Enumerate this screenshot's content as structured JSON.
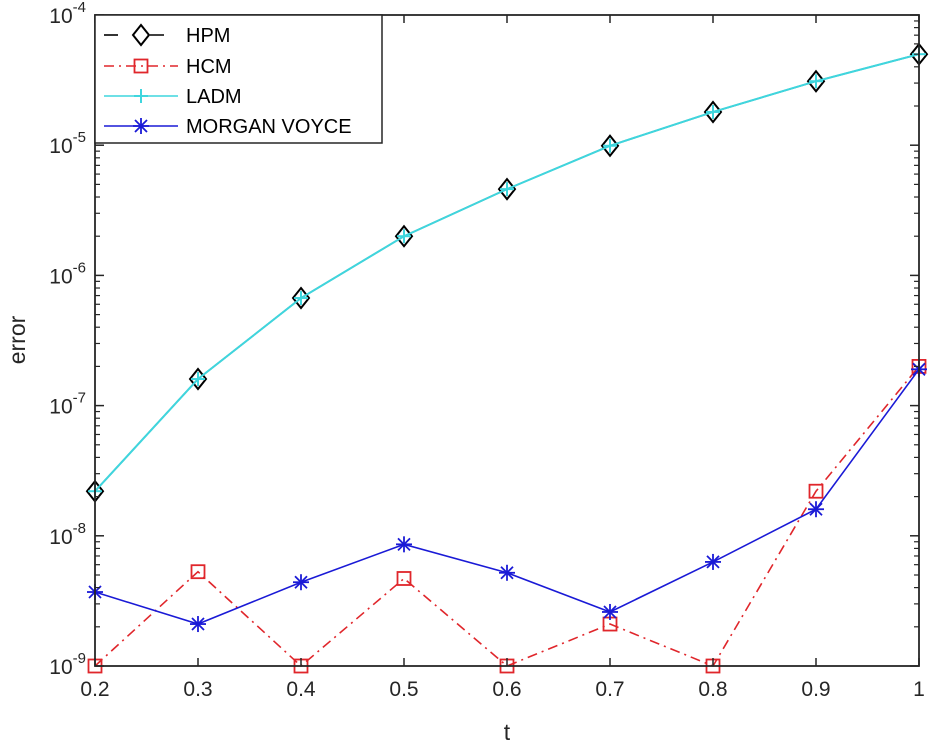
{
  "chart_data": {
    "type": "line",
    "title": "",
    "xlabel": "t",
    "ylabel": "error",
    "yscale": "log",
    "xlim": [
      0.2,
      1
    ],
    "ylim": [
      1e-09,
      0.0001
    ],
    "grid": false,
    "legend_position": "upper-left",
    "x": [
      0.2,
      0.3,
      0.4,
      0.5,
      0.6,
      0.7,
      0.8,
      0.9,
      1.0
    ],
    "x_ticks": [
      "0.2",
      "0.3",
      "0.4",
      "0.5",
      "0.6",
      "0.7",
      "0.8",
      "0.9",
      "1"
    ],
    "y_ticks": [
      {
        "base": "10",
        "exp": "-4",
        "value": 0.0001
      },
      {
        "base": "10",
        "exp": "-5",
        "value": 1e-05
      },
      {
        "base": "10",
        "exp": "-6",
        "value": 1e-06
      },
      {
        "base": "10",
        "exp": "-7",
        "value": 1e-07
      },
      {
        "base": "10",
        "exp": "-8",
        "value": 1e-08
      },
      {
        "base": "10",
        "exp": "-9",
        "value": 1e-09
      }
    ],
    "series": [
      {
        "name": "HPM",
        "color": "#000000",
        "linestyle": "solid",
        "marker": "diamond",
        "values": [
          2.2e-08,
          1.6e-07,
          6.7e-07,
          2e-06,
          4.6e-06,
          9.9e-06,
          1.8e-05,
          3.1e-05,
          5e-05
        ]
      },
      {
        "name": "HCM",
        "color": "#e0262b",
        "linestyle": "dashdot",
        "marker": "square",
        "values": [
          1e-09,
          5.3e-09,
          1e-09,
          4.7e-09,
          1e-09,
          2.1e-09,
          1e-09,
          2.2e-08,
          2e-07
        ]
      },
      {
        "name": "LADM",
        "color": "#3fd6de",
        "linestyle": "solid",
        "marker": "plus",
        "values": [
          2.2e-08,
          1.6e-07,
          6.7e-07,
          2e-06,
          4.6e-06,
          9.9e-06,
          1.8e-05,
          3.1e-05,
          5e-05
        ]
      },
      {
        "name": "MORGAN VOYCE",
        "color": "#1a1ad6",
        "linestyle": "solid",
        "marker": "asterisk",
        "values": [
          3.7e-09,
          2.1e-09,
          4.4e-09,
          8.6e-09,
          5.2e-09,
          2.6e-09,
          6.3e-09,
          1.6e-08,
          1.9e-07
        ]
      }
    ]
  }
}
